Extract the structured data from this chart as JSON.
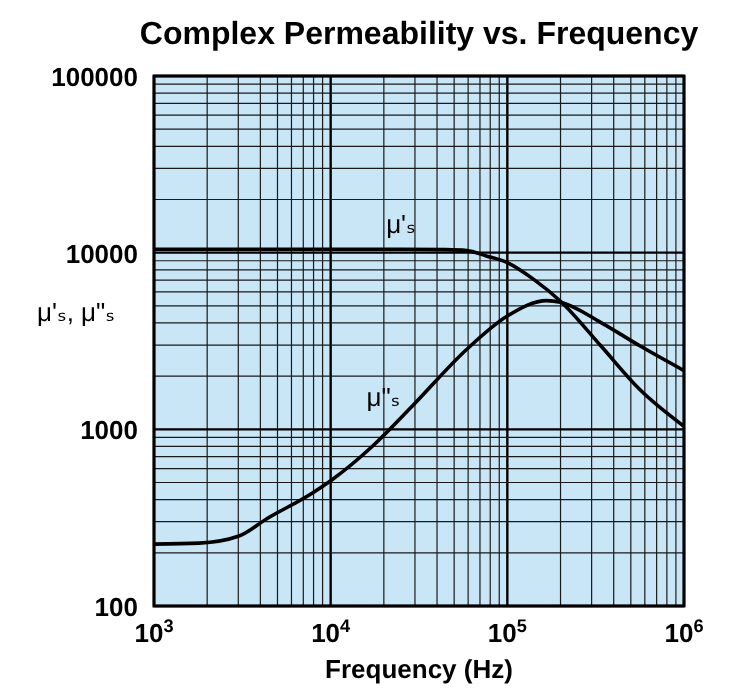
{
  "chart_data": {
    "type": "line",
    "title": "Complex Permeability vs. Frequency",
    "xlabel": "Frequency (Hz)",
    "ylabel": "μ'ₛ, μ\"ₛ",
    "log": "xy",
    "grid": true,
    "xlim": [
      1000,
      1000000
    ],
    "ylim": [
      100,
      100000
    ],
    "xticks": [
      {
        "value": 1000,
        "label": "10$^{3}$"
      },
      {
        "value": 10000,
        "label": "10$^{4}$"
      },
      {
        "value": 100000,
        "label": "10$^{5}$"
      },
      {
        "value": 1000000,
        "label": "10$^{6}$"
      }
    ],
    "yticks": [
      100,
      1000,
      10000,
      100000
    ],
    "series": [
      {
        "name": "μ'ₛ",
        "color": "#000000",
        "x": [
          1000,
          10000,
          25000,
          45000,
          59000,
          76000,
          100000,
          141000,
          200000,
          339000,
          562000,
          1000000
        ],
        "values": [
          10450,
          10450,
          10450,
          10400,
          10270,
          9580,
          8780,
          7060,
          5310,
          2960,
          1680,
          1040
        ]
      },
      {
        "name": "μ\"ₛ",
        "color": "#000000",
        "x": [
          1000,
          1800,
          3030,
          4310,
          7930,
          10000,
          17300,
          29000,
          59000,
          100000,
          167000,
          200000,
          339000,
          562000,
          1000000
        ],
        "values": [
          224,
          227,
          249,
          310,
          438,
          512,
          805,
          1355,
          2840,
          4380,
          5350,
          5240,
          4020,
          2970,
          2150
        ]
      }
    ]
  }
}
